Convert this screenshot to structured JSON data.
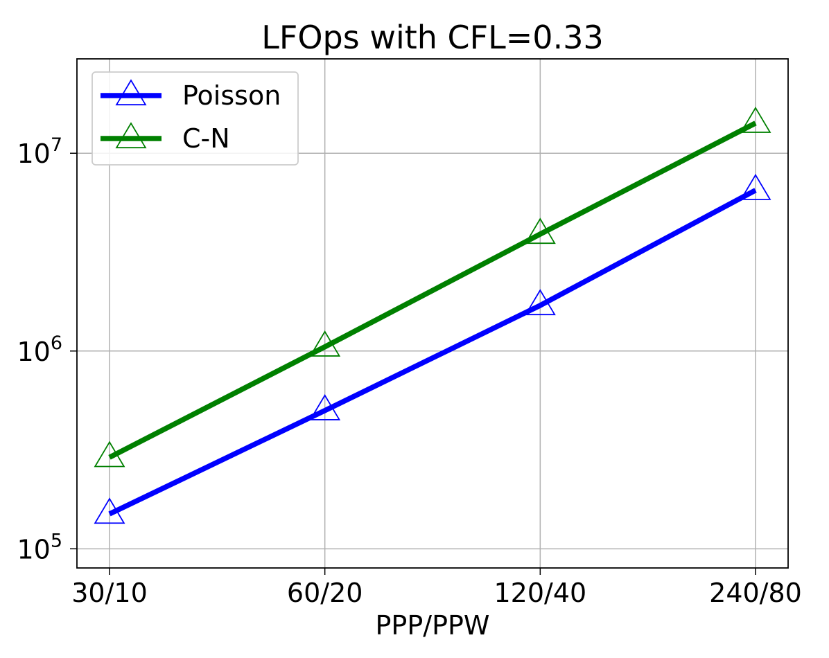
{
  "chart_data": {
    "type": "line",
    "title": "LFOps with CFL=0.33",
    "xlabel": "PPP/PPW",
    "ylabel": "",
    "categories": [
      "30/10",
      "60/20",
      "120/40",
      "240/80"
    ],
    "y_scale": "log",
    "ylim": [
      80000,
      30000000
    ],
    "y_ticks": [
      {
        "value": 100000,
        "base": "10",
        "exp": "5"
      },
      {
        "value": 1000000,
        "base": "10",
        "exp": "6"
      },
      {
        "value": 10000000,
        "base": "10",
        "exp": "7"
      }
    ],
    "grid": true,
    "legend_position": "top-left",
    "marker": "triangle-open",
    "series": [
      {
        "name": "Poisson",
        "color": "#0000ff",
        "values": [
          150000,
          500000,
          1700000,
          6500000
        ]
      },
      {
        "name": "C-N",
        "color": "#008000",
        "values": [
          290000,
          1050000,
          3900000,
          14200000
        ]
      }
    ]
  }
}
